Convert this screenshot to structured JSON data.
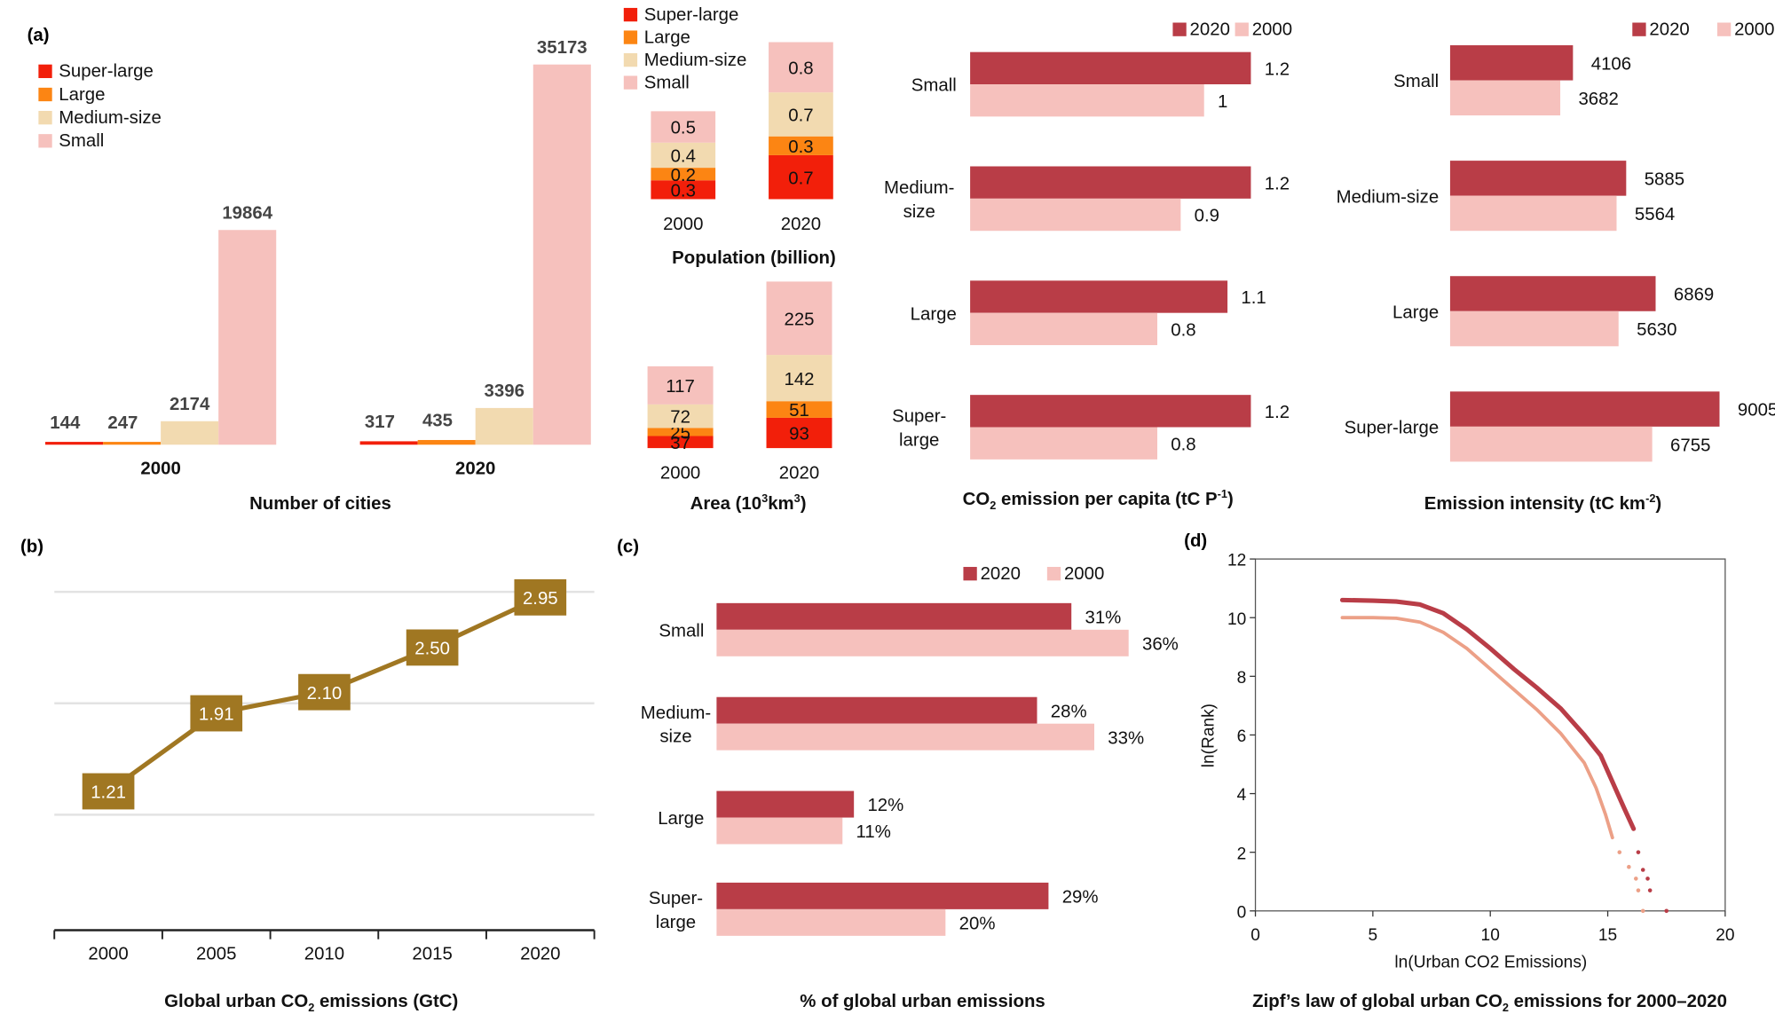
{
  "colors": {
    "super_large": "#f21f0a",
    "large": "#fc8513",
    "medium": "#f2dab0",
    "small": "#f6c1bd",
    "y2020": "#b93d47",
    "y2000": "#f6c1bd",
    "line": "#a07722",
    "grid": "#e3e3e3"
  },
  "panels": {
    "a": "(a)",
    "b": "(b)",
    "c": "(c)",
    "d": "(d)"
  },
  "chart_data": [
    {
      "id": "num_cities",
      "type": "bar",
      "title": "Number of cities",
      "legend": [
        "Super-large",
        "Large",
        "Medium-size",
        "Small"
      ],
      "legend_position": "top-left",
      "categories": [
        "2000",
        "2020"
      ],
      "series": [
        {
          "name": "Super-large",
          "values": [
            144,
            317
          ]
        },
        {
          "name": "Large",
          "values": [
            247,
            435
          ]
        },
        {
          "name": "Medium-size",
          "values": [
            2174,
            3396
          ]
        },
        {
          "name": "Small",
          "values": [
            19864,
            35173
          ]
        }
      ],
      "ylim": [
        0,
        38000
      ]
    },
    {
      "id": "population",
      "type": "bar",
      "stacked": true,
      "title": "Population (billion)",
      "legend": [
        "Super-large",
        "Large",
        "Medium-size",
        "Small"
      ],
      "legend_position": "top",
      "categories": [
        "2000",
        "2020"
      ],
      "series": [
        {
          "name": "Super-large",
          "values": [
            0.3,
            0.7
          ],
          "labels": [
            "0.3",
            "0.7"
          ]
        },
        {
          "name": "Large",
          "values": [
            0.2,
            0.3
          ],
          "labels": [
            "0.2",
            "0.3"
          ]
        },
        {
          "name": "Medium-size",
          "values": [
            0.4,
            0.7
          ],
          "labels": [
            "0.4",
            "0.7"
          ]
        },
        {
          "name": "Small",
          "values": [
            0.5,
            0.8
          ],
          "labels": [
            "0.5",
            "0.8"
          ]
        }
      ]
    },
    {
      "id": "area",
      "type": "bar",
      "stacked": true,
      "title": "Area (10³km³)",
      "categories": [
        "2000",
        "2020"
      ],
      "series": [
        {
          "name": "Super-large",
          "values": [
            37,
            93
          ]
        },
        {
          "name": "Large",
          "values": [
            25,
            51
          ]
        },
        {
          "name": "Medium-size",
          "values": [
            72,
            142
          ]
        },
        {
          "name": "Small",
          "values": [
            117,
            225
          ]
        }
      ]
    },
    {
      "id": "per_capita",
      "type": "bar",
      "orientation": "horizontal",
      "title": "CO₂ emission per capita (tC P⁻¹)",
      "legend": [
        "2020",
        "2000"
      ],
      "legend_position": "top-right",
      "categories": [
        "Small",
        "Medium-size",
        "Large",
        "Super-large"
      ],
      "category_labels": [
        [
          "Small"
        ],
        [
          "Medium-",
          "size"
        ],
        [
          "Large"
        ],
        [
          "Super-",
          "large"
        ]
      ],
      "series": [
        {
          "name": "2020",
          "values": [
            1.2,
            1.2,
            1.1,
            1.2
          ],
          "labels": [
            "1.2",
            "1.2",
            "1.1",
            "1.2"
          ]
        },
        {
          "name": "2000",
          "values": [
            1.0,
            0.9,
            0.8,
            0.8
          ],
          "labels": [
            "1",
            "0.9",
            "0.8",
            "0.8"
          ]
        }
      ],
      "xlim": [
        0,
        1.2
      ]
    },
    {
      "id": "intensity",
      "type": "bar",
      "orientation": "horizontal",
      "title": "Emission intensity (tC km⁻²)",
      "legend": [
        "2020",
        "2000"
      ],
      "legend_position": "top-right",
      "categories": [
        "Small",
        "Medium-size",
        "Large",
        "Super-large"
      ],
      "category_labels": [
        [
          "Small"
        ],
        [
          "Medium-size"
        ],
        [
          "Large"
        ],
        [
          "Super-large"
        ]
      ],
      "series": [
        {
          "name": "2020",
          "values": [
            4106,
            5885,
            6869,
            9005
          ],
          "labels": [
            "4106",
            "5885",
            "6869",
            "9005"
          ]
        },
        {
          "name": "2000",
          "values": [
            3682,
            5564,
            5630,
            6755
          ],
          "labels": [
            "3682",
            "5564",
            "5630",
            "6755"
          ]
        }
      ],
      "xlim": [
        0,
        9005
      ]
    },
    {
      "id": "global_emissions",
      "type": "line",
      "title": "Global urban CO₂ emissions (GtC)",
      "x": [
        "2000",
        "2005",
        "2010",
        "2015",
        "2020"
      ],
      "values": [
        1.21,
        1.91,
        2.1,
        2.5,
        2.95
      ],
      "labels": [
        "1.21",
        "1.91",
        "2.10",
        "2.50",
        "2.95"
      ],
      "ylim": [
        0.5,
        3.0
      ],
      "gridlines": [
        1.0,
        2.0,
        3.0
      ],
      "grid": true
    },
    {
      "id": "share",
      "type": "bar",
      "orientation": "horizontal",
      "title": "% of global urban emissions",
      "legend": [
        "2020",
        "2000"
      ],
      "legend_position": "top-right",
      "categories": [
        "Small",
        "Medium-size",
        "Large",
        "Super-large"
      ],
      "category_labels": [
        [
          "Small"
        ],
        [
          "Medium-",
          "size"
        ],
        [
          "Large"
        ],
        [
          "Super-",
          "large"
        ]
      ],
      "series": [
        {
          "name": "2020",
          "values": [
            31,
            28,
            12,
            29
          ],
          "labels": [
            "31%",
            "28%",
            "12%",
            "29%"
          ]
        },
        {
          "name": "2000",
          "values": [
            36,
            33,
            11,
            20
          ],
          "labels": [
            "36%",
            "33%",
            "11%",
            "20%"
          ]
        }
      ],
      "xlim": [
        0,
        36
      ]
    },
    {
      "id": "zipf",
      "type": "scatter",
      "title": "Zipf’s law of global urban CO₂ emissions for 2000–2020",
      "xlabel": "ln(Urban CO2 Emissions)",
      "ylabel": "ln(Rank)",
      "xlim": [
        0,
        20
      ],
      "ylim": [
        0,
        12
      ],
      "xticks": [
        0,
        5,
        10,
        15,
        20
      ],
      "yticks": [
        0,
        2,
        4,
        6,
        8,
        10,
        12
      ],
      "series": [
        {
          "name": "2020",
          "color": "#b93d47",
          "x": [
            3.7,
            5.0,
            6.0,
            7.0,
            8.0,
            9.0,
            10.0,
            11.0,
            12.0,
            13.0,
            14.0,
            14.7,
            15.2,
            15.7,
            16.1,
            16.3,
            16.5,
            16.7,
            16.8,
            17.5
          ],
          "y": [
            10.6,
            10.58,
            10.55,
            10.45,
            10.15,
            9.6,
            8.95,
            8.25,
            7.6,
            6.9,
            6.0,
            5.3,
            4.4,
            3.5,
            2.8,
            2.0,
            1.4,
            1.1,
            0.7,
            0.0
          ]
        },
        {
          "name": "2000",
          "color": "#eca087",
          "x": [
            3.7,
            5.0,
            6.0,
            7.0,
            8.0,
            9.0,
            10.0,
            11.0,
            12.0,
            13.0,
            14.0,
            14.5,
            14.9,
            15.2,
            15.5,
            15.9,
            16.2,
            16.3,
            16.5
          ],
          "y": [
            10.0,
            10.0,
            9.98,
            9.85,
            9.5,
            8.95,
            8.25,
            7.55,
            6.85,
            6.05,
            5.05,
            4.2,
            3.3,
            2.5,
            2.0,
            1.5,
            1.1,
            0.7,
            0.0
          ]
        }
      ]
    }
  ]
}
